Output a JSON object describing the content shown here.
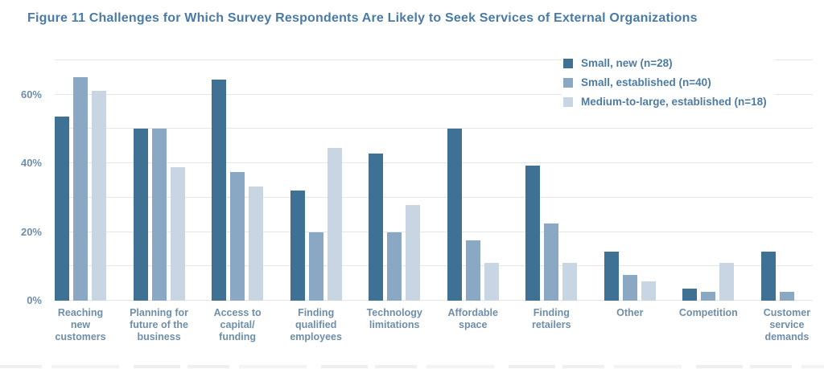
{
  "title": "Figure 11 Challenges for Which Survey Respondents Are Likely to Seek Services of External Organizations",
  "colors": {
    "title_text": "#4a7aa6",
    "axis_label_text": "#6e8ea9",
    "legend_text": "#4d7ba4",
    "gridline": "#e6e6e6",
    "series": [
      "#3f7195",
      "#8aa8c4",
      "#c8d6e4"
    ]
  },
  "chart_data": {
    "type": "bar",
    "title": "Figure 11 Challenges for Which Survey Respondents Are Likely to Seek Services of External Organizations",
    "xlabel": "",
    "ylabel": "",
    "ylim": [
      0,
      70
    ],
    "gridlines_every": 10,
    "grid": true,
    "legend_position": "top-right",
    "yticks": [
      {
        "value": 0,
        "label": "0%"
      },
      {
        "value": 20,
        "label": "20%"
      },
      {
        "value": 40,
        "label": "40%"
      },
      {
        "value": 60,
        "label": "60%"
      }
    ],
    "categories": [
      "Reaching\nnew\ncustomers",
      "Planning for\nfuture of the\nbusiness",
      "Access to\ncapital/\nfunding",
      "Finding\nqualified\nemployees",
      "Technology\nlimitations",
      "Affordable\nspace",
      "Finding\nretailers",
      "Other",
      "Competition",
      "Customer\nservice\ndemands"
    ],
    "series": [
      {
        "name": "Small, new (n=28)",
        "color": "#3f7195",
        "values": [
          53.6,
          50,
          64.3,
          32.1,
          42.9,
          50,
          39.3,
          14.3,
          3.6,
          14.3
        ]
      },
      {
        "name": "Small, established (n=40)",
        "color": "#8aa8c4",
        "values": [
          65,
          50,
          37.5,
          20,
          20,
          17.5,
          22.5,
          7.5,
          2.5,
          2.5
        ]
      },
      {
        "name": "Medium-to-large, established (n=18)",
        "color": "#c8d6e4",
        "values": [
          61.1,
          38.9,
          33.3,
          44.4,
          27.8,
          11.1,
          11.1,
          5.6,
          11.1,
          0
        ]
      }
    ]
  }
}
